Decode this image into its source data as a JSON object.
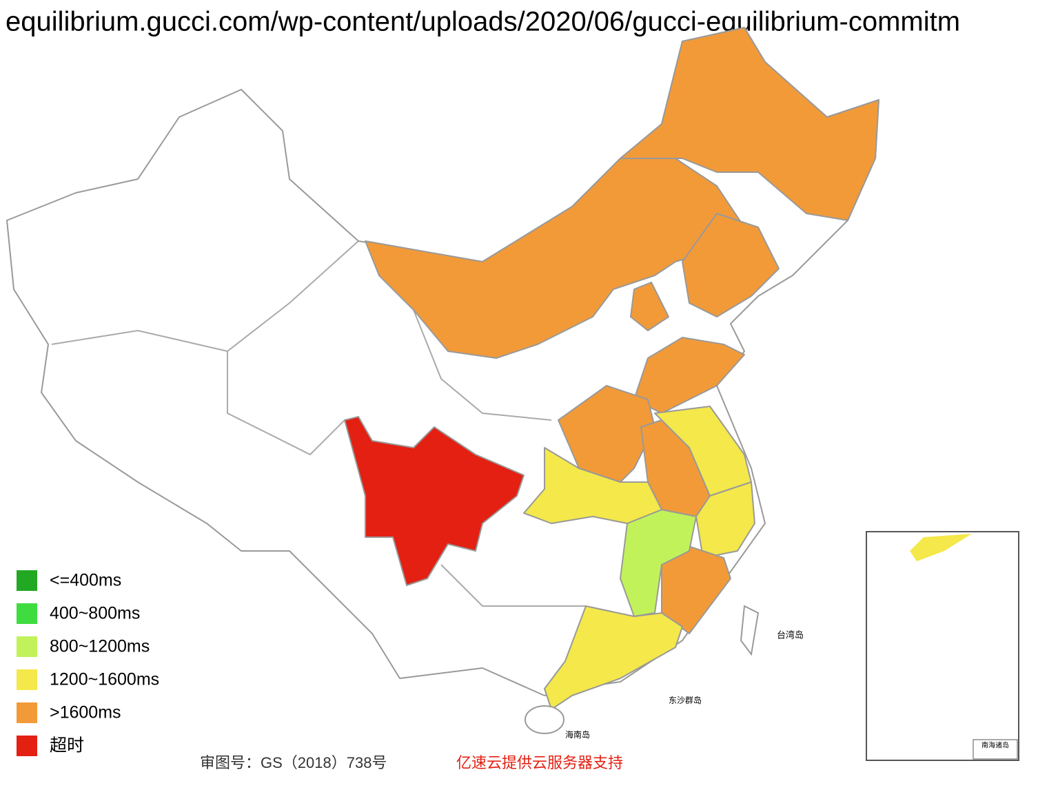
{
  "header": {
    "url": "equilibrium.gucci.com/wp-content/uploads/2020/06/gucci-equilibrium-commitm"
  },
  "legend": {
    "items": [
      {
        "label": "<=400ms",
        "color": "#22a822"
      },
      {
        "label": "400~800ms",
        "color": "#3fdc3f"
      },
      {
        "label": "800~1200ms",
        "color": "#c2f25a"
      },
      {
        "label": "1200~1600ms",
        "color": "#f4e84a"
      },
      {
        "label": ">1600ms",
        "color": "#f29a38"
      },
      {
        "label": "超时",
        "color": "#e32012"
      }
    ]
  },
  "map_labels": {
    "taiwan": "台湾岛",
    "dongsha": "东沙群岛",
    "hainan": "海南岛",
    "nanhai": "南海诸岛"
  },
  "footer": {
    "approval": "审图号：GS（2018）738号",
    "sponsor": "亿速云提供云服务器支持"
  }
}
